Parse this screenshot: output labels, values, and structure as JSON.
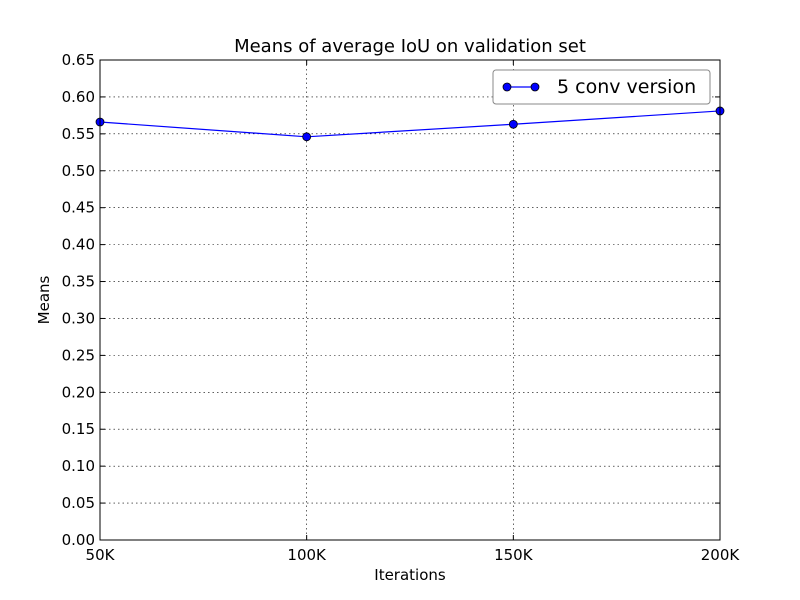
{
  "chart_data": {
    "type": "line",
    "title": "Means of average IoU on validation set",
    "xlabel": "Iterations",
    "ylabel": "Means",
    "categories": [
      "50K",
      "100K",
      "150K",
      "200K"
    ],
    "ylim": [
      0,
      0.65
    ],
    "yticks": [
      "0.00",
      "0.05",
      "0.10",
      "0.15",
      "0.20",
      "0.25",
      "0.30",
      "0.35",
      "0.40",
      "0.45",
      "0.50",
      "0.55",
      "0.60",
      "0.65"
    ],
    "grid": true,
    "legend_position": "top-right",
    "series": [
      {
        "name": "5 conv version",
        "values": [
          0.566,
          0.546,
          0.563,
          0.581
        ],
        "color": "#0000ff",
        "marker": "circle"
      }
    ]
  }
}
